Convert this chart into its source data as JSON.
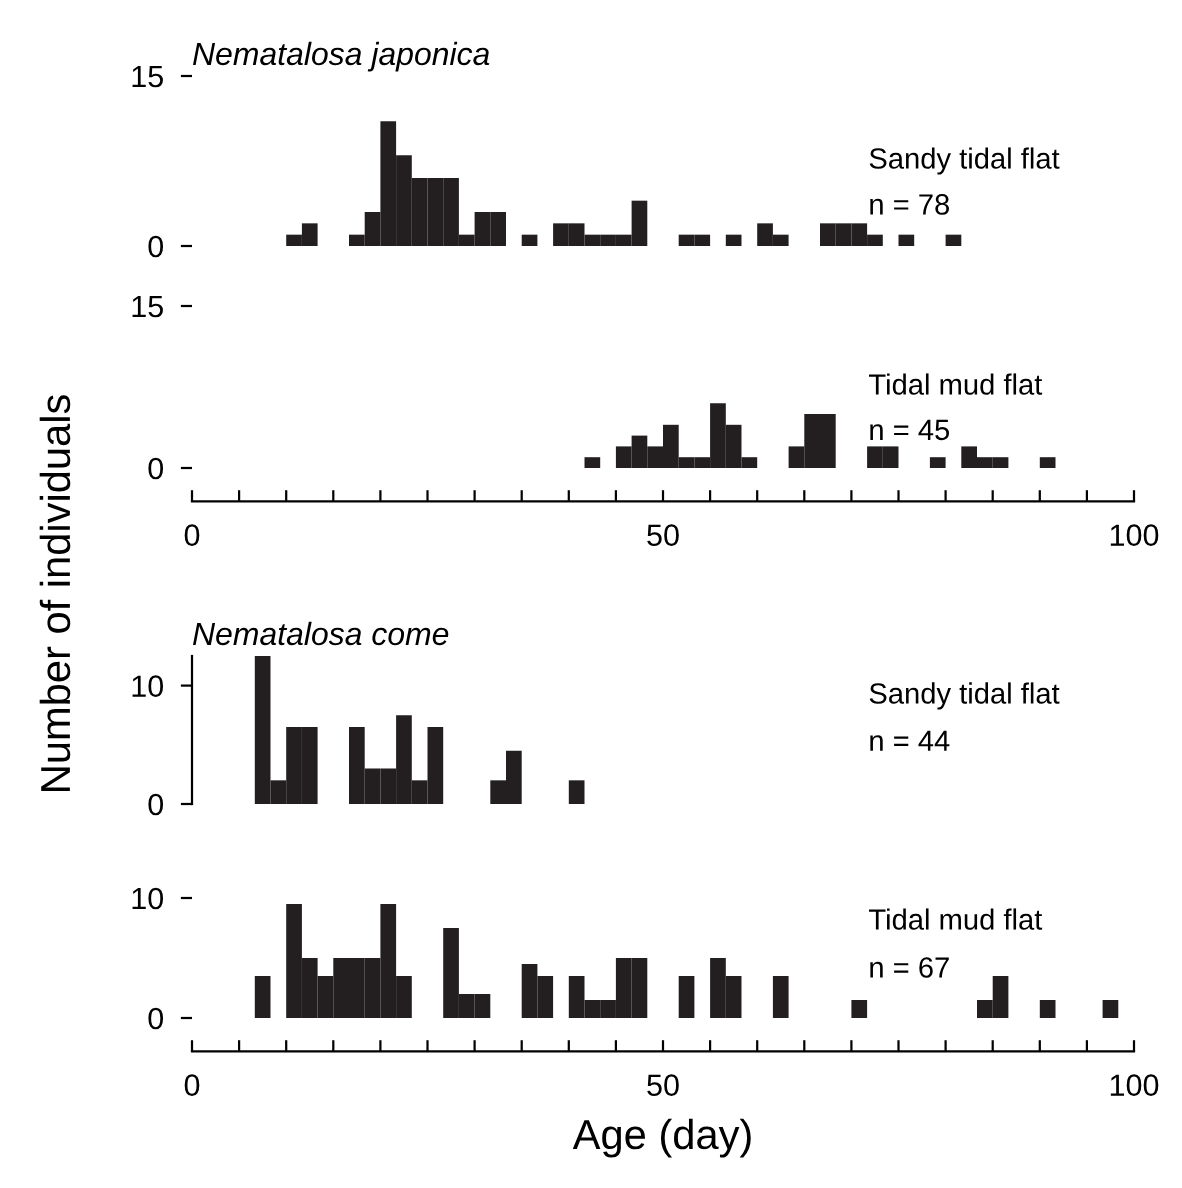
{
  "chart_data": [
    {
      "type": "histogram",
      "title": "Nematalosa japonica",
      "ylabel": "Number of individuals",
      "annotations": [
        "Sandy tidal flat",
        "n = 78"
      ],
      "color": "#231f20",
      "grid": false,
      "tick_labels": "y",
      "xlim": [
        0,
        100
      ],
      "ylim": [
        0,
        15
      ],
      "yticks": [
        0,
        15
      ],
      "bins": [
        0,
        1.667,
        3.333,
        5,
        6.667,
        8.333,
        10,
        11.667,
        13.333,
        15,
        16.667,
        18.333,
        20,
        21.667,
        23.333,
        25,
        26.667,
        28.333,
        30,
        31.667,
        33.333,
        35,
        36.667,
        38.333,
        40,
        41.667,
        43.333,
        45,
        46.667,
        48.333,
        50,
        51.667,
        53.333,
        55,
        56.667,
        58.333,
        60,
        61.667,
        63.333,
        65,
        66.667,
        68.333,
        70,
        71.667,
        73.333,
        75,
        76.667,
        78.333,
        80,
        81.667,
        83.333,
        85,
        86.667,
        88.333,
        90,
        91.667,
        93.333,
        95,
        96.667,
        98.333,
        100
      ],
      "values": [
        0,
        0,
        0,
        0,
        0,
        0,
        1,
        2,
        0,
        0,
        1,
        3,
        11,
        8,
        6,
        6,
        6,
        1,
        3,
        3,
        0,
        1,
        0,
        2,
        2,
        1,
        1,
        1,
        4,
        0,
        0,
        1,
        1,
        0,
        1,
        0,
        2,
        1,
        0,
        0,
        2,
        2,
        2,
        1,
        0,
        1,
        0,
        0,
        1,
        0,
        0,
        0,
        0,
        0,
        0,
        0,
        0,
        0,
        0,
        0
      ]
    },
    {
      "type": "histogram",
      "annotations": [
        "Tidal mud flat",
        "n = 45"
      ],
      "color": "#231f20",
      "grid": false,
      "xlim": [
        0,
        100
      ],
      "ylim": [
        0,
        15
      ],
      "yticks": [
        0,
        15
      ],
      "xticks": [
        {
          "value": 0,
          "label": "0"
        },
        {
          "value": 5,
          "label": null
        },
        {
          "value": 10,
          "label": null
        },
        {
          "value": 15,
          "label": null
        },
        {
          "value": 20,
          "label": null
        },
        {
          "value": 25,
          "label": null
        },
        {
          "value": 30,
          "label": null
        },
        {
          "value": 35,
          "label": null
        },
        {
          "value": 40,
          "label": null
        },
        {
          "value": 45,
          "label": null
        },
        {
          "value": 50,
          "label": "50"
        },
        {
          "value": 55,
          "label": null
        },
        {
          "value": 60,
          "label": null
        },
        {
          "value": 65,
          "label": null
        },
        {
          "value": 70,
          "label": null
        },
        {
          "value": 75,
          "label": null
        },
        {
          "value": 80,
          "label": null
        },
        {
          "value": 85,
          "label": null
        },
        {
          "value": 90,
          "label": null
        },
        {
          "value": 95,
          "label": null
        },
        {
          "value": 100,
          "label": "100"
        }
      ],
      "bins": [
        0,
        1.667,
        3.333,
        5,
        6.667,
        8.333,
        10,
        11.667,
        13.333,
        15,
        16.667,
        18.333,
        20,
        21.667,
        23.333,
        25,
        26.667,
        28.333,
        30,
        31.667,
        33.333,
        35,
        36.667,
        38.333,
        40,
        41.667,
        43.333,
        45,
        46.667,
        48.333,
        50,
        51.667,
        53.333,
        55,
        56.667,
        58.333,
        60,
        61.667,
        63.333,
        65,
        66.667,
        68.333,
        70,
        71.667,
        73.333,
        75,
        76.667,
        78.333,
        80,
        81.667,
        83.333,
        85,
        86.667,
        88.333,
        90,
        91.667,
        93.333,
        95,
        96.667,
        98.333,
        100
      ],
      "values": [
        0,
        0,
        0,
        0,
        0,
        0,
        0,
        0,
        0,
        0,
        0,
        0,
        0,
        0,
        0,
        0,
        0,
        0,
        0,
        0,
        0,
        0,
        0,
        0,
        0,
        1,
        0,
        2,
        3,
        2,
        4,
        1,
        1,
        6,
        4,
        1,
        0,
        0,
        2,
        5,
        5,
        0,
        0,
        2,
        2,
        0,
        0,
        1,
        0,
        2,
        1,
        1,
        0,
        0,
        1,
        0,
        0,
        0,
        0,
        0
      ]
    },
    {
      "type": "histogram",
      "title": "Nematalosa come",
      "annotations": [
        "Sandy tidal flat",
        "n = 44"
      ],
      "color": "#231f20",
      "grid": false,
      "tick_labels": "y",
      "xlim": [
        0,
        100
      ],
      "ylim": [
        0,
        12.5
      ],
      "yticks": [
        0,
        10
      ],
      "bins": [
        0,
        1.667,
        3.333,
        5,
        6.667,
        8.333,
        10,
        11.667,
        13.333,
        15,
        16.667,
        18.333,
        20,
        21.667,
        23.333,
        25,
        26.667,
        28.333,
        30,
        31.667,
        33.333,
        35,
        36.667,
        38.333,
        40,
        41.667,
        43.333,
        45,
        46.667,
        48.333,
        50,
        51.667,
        53.333,
        55,
        56.667,
        58.333,
        60,
        61.667,
        63.333,
        65,
        66.667,
        68.333,
        70,
        71.667,
        73.333,
        75,
        76.667,
        78.333,
        80,
        81.667,
        83.333,
        85,
        86.667,
        88.333,
        90,
        91.667,
        93.333,
        95,
        96.667,
        98.333,
        100
      ],
      "values": [
        0,
        0,
        0,
        0,
        12.5,
        2,
        6.5,
        6.5,
        0,
        0,
        6.5,
        3,
        3,
        7.5,
        2,
        6.5,
        0,
        0,
        0,
        2,
        4.5,
        0,
        0,
        0,
        2,
        0,
        0,
        0,
        0,
        0,
        0,
        0,
        0,
        0,
        0,
        0,
        0,
        0,
        0,
        0,
        0,
        0,
        0,
        0,
        0,
        0,
        0,
        0,
        0,
        0,
        0,
        0,
        0,
        0,
        0,
        0,
        0,
        0,
        0,
        0
      ]
    },
    {
      "type": "histogram",
      "xlabel": "Age (day)",
      "annotations": [
        "Tidal mud flat",
        "n = 67"
      ],
      "color": "#231f20",
      "grid": false,
      "xlim": [
        0,
        100
      ],
      "ylim": [
        0,
        10
      ],
      "yticks": [
        0,
        10
      ],
      "xticks": [
        {
          "value": 0,
          "label": "0"
        },
        {
          "value": 5,
          "label": null
        },
        {
          "value": 10,
          "label": null
        },
        {
          "value": 15,
          "label": null
        },
        {
          "value": 20,
          "label": null
        },
        {
          "value": 25,
          "label": null
        },
        {
          "value": 30,
          "label": null
        },
        {
          "value": 35,
          "label": null
        },
        {
          "value": 40,
          "label": null
        },
        {
          "value": 45,
          "label": null
        },
        {
          "value": 50,
          "label": "50"
        },
        {
          "value": 55,
          "label": null
        },
        {
          "value": 60,
          "label": null
        },
        {
          "value": 65,
          "label": null
        },
        {
          "value": 70,
          "label": null
        },
        {
          "value": 75,
          "label": null
        },
        {
          "value": 80,
          "label": null
        },
        {
          "value": 85,
          "label": null
        },
        {
          "value": 90,
          "label": null
        },
        {
          "value": 95,
          "label": null
        },
        {
          "value": 100,
          "label": "100"
        }
      ],
      "bins": [
        0,
        1.667,
        3.333,
        5,
        6.667,
        8.333,
        10,
        11.667,
        13.333,
        15,
        16.667,
        18.333,
        20,
        21.667,
        23.333,
        25,
        26.667,
        28.333,
        30,
        31.667,
        33.333,
        35,
        36.667,
        38.333,
        40,
        41.667,
        43.333,
        45,
        46.667,
        48.333,
        50,
        51.667,
        53.333,
        55,
        56.667,
        58.333,
        60,
        61.667,
        63.333,
        65,
        66.667,
        68.333,
        70,
        71.667,
        73.333,
        75,
        76.667,
        78.333,
        80,
        81.667,
        83.333,
        85,
        86.667,
        88.333,
        90,
        91.667,
        93.333,
        95,
        96.667,
        98.333,
        100
      ],
      "values": [
        0,
        0,
        0,
        0,
        3.5,
        0,
        9.5,
        5,
        3.5,
        5,
        5,
        5,
        9.5,
        3.5,
        0,
        0,
        7.5,
        2,
        2,
        0,
        0,
        4.5,
        3.5,
        0,
        3.5,
        1.5,
        1.5,
        5,
        5,
        0,
        0,
        3.5,
        0,
        5,
        3.5,
        0,
        0,
        3.5,
        0,
        0,
        0,
        0,
        1.5,
        0,
        0,
        0,
        0,
        0,
        0,
        0,
        1.5,
        3.5,
        0,
        0,
        1.5,
        0,
        0,
        0,
        1.5,
        0
      ]
    }
  ]
}
